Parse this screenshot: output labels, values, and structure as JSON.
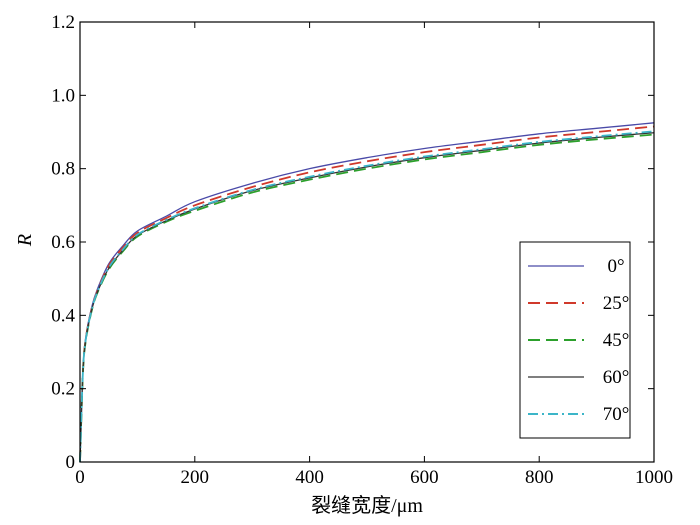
{
  "chart_data": {
    "type": "line",
    "title": "",
    "xlabel": "裂缝宽度/μm",
    "ylabel": "R",
    "xlim": [
      0,
      1000
    ],
    "ylim": [
      0,
      1.2
    ],
    "xticks": [
      0,
      200,
      400,
      600,
      800,
      1000
    ],
    "xtick_labels": [
      "0",
      "200",
      "400",
      "600",
      "800",
      "1000"
    ],
    "yticks": [
      0,
      0.2,
      0.4,
      0.6,
      0.8,
      1.0,
      1.2
    ],
    "ytick_labels": [
      "0",
      "0.2",
      "0.4",
      "0.6",
      "0.8",
      "1.0",
      "1.2"
    ],
    "grid": false,
    "legend_position": "lower-right",
    "x": [
      0,
      5,
      10,
      20,
      30,
      50,
      75,
      100,
      150,
      200,
      300,
      400,
      500,
      600,
      700,
      800,
      900,
      1000
    ],
    "series": [
      {
        "name": "0°",
        "color": "#4a4aa8",
        "dash": "solid",
        "values": [
          0,
          0.25,
          0.34,
          0.42,
          0.47,
          0.54,
          0.59,
          0.63,
          0.67,
          0.71,
          0.76,
          0.8,
          0.83,
          0.855,
          0.875,
          0.895,
          0.91,
          0.925
        ]
      },
      {
        "name": "25°",
        "color": "#d0392b",
        "dash": "dashed",
        "values": [
          0,
          0.245,
          0.335,
          0.415,
          0.465,
          0.535,
          0.585,
          0.625,
          0.665,
          0.7,
          0.75,
          0.79,
          0.82,
          0.845,
          0.865,
          0.885,
          0.9,
          0.915
        ]
      },
      {
        "name": "45°",
        "color": "#2ca02c",
        "dash": "dashed",
        "values": [
          0,
          0.24,
          0.33,
          0.41,
          0.46,
          0.525,
          0.575,
          0.615,
          0.655,
          0.685,
          0.735,
          0.77,
          0.8,
          0.825,
          0.845,
          0.865,
          0.88,
          0.893
        ]
      },
      {
        "name": "60°",
        "color": "#333333",
        "dash": "solid",
        "values": [
          0,
          0.242,
          0.332,
          0.412,
          0.462,
          0.528,
          0.578,
          0.618,
          0.658,
          0.69,
          0.74,
          0.775,
          0.805,
          0.83,
          0.85,
          0.87,
          0.885,
          0.898
        ]
      },
      {
        "name": "70°",
        "color": "#3cb5c8",
        "dash": "dashdot",
        "values": [
          0,
          0.243,
          0.333,
          0.413,
          0.463,
          0.53,
          0.58,
          0.62,
          0.66,
          0.692,
          0.742,
          0.778,
          0.808,
          0.833,
          0.853,
          0.873,
          0.888,
          0.902
        ]
      }
    ]
  }
}
